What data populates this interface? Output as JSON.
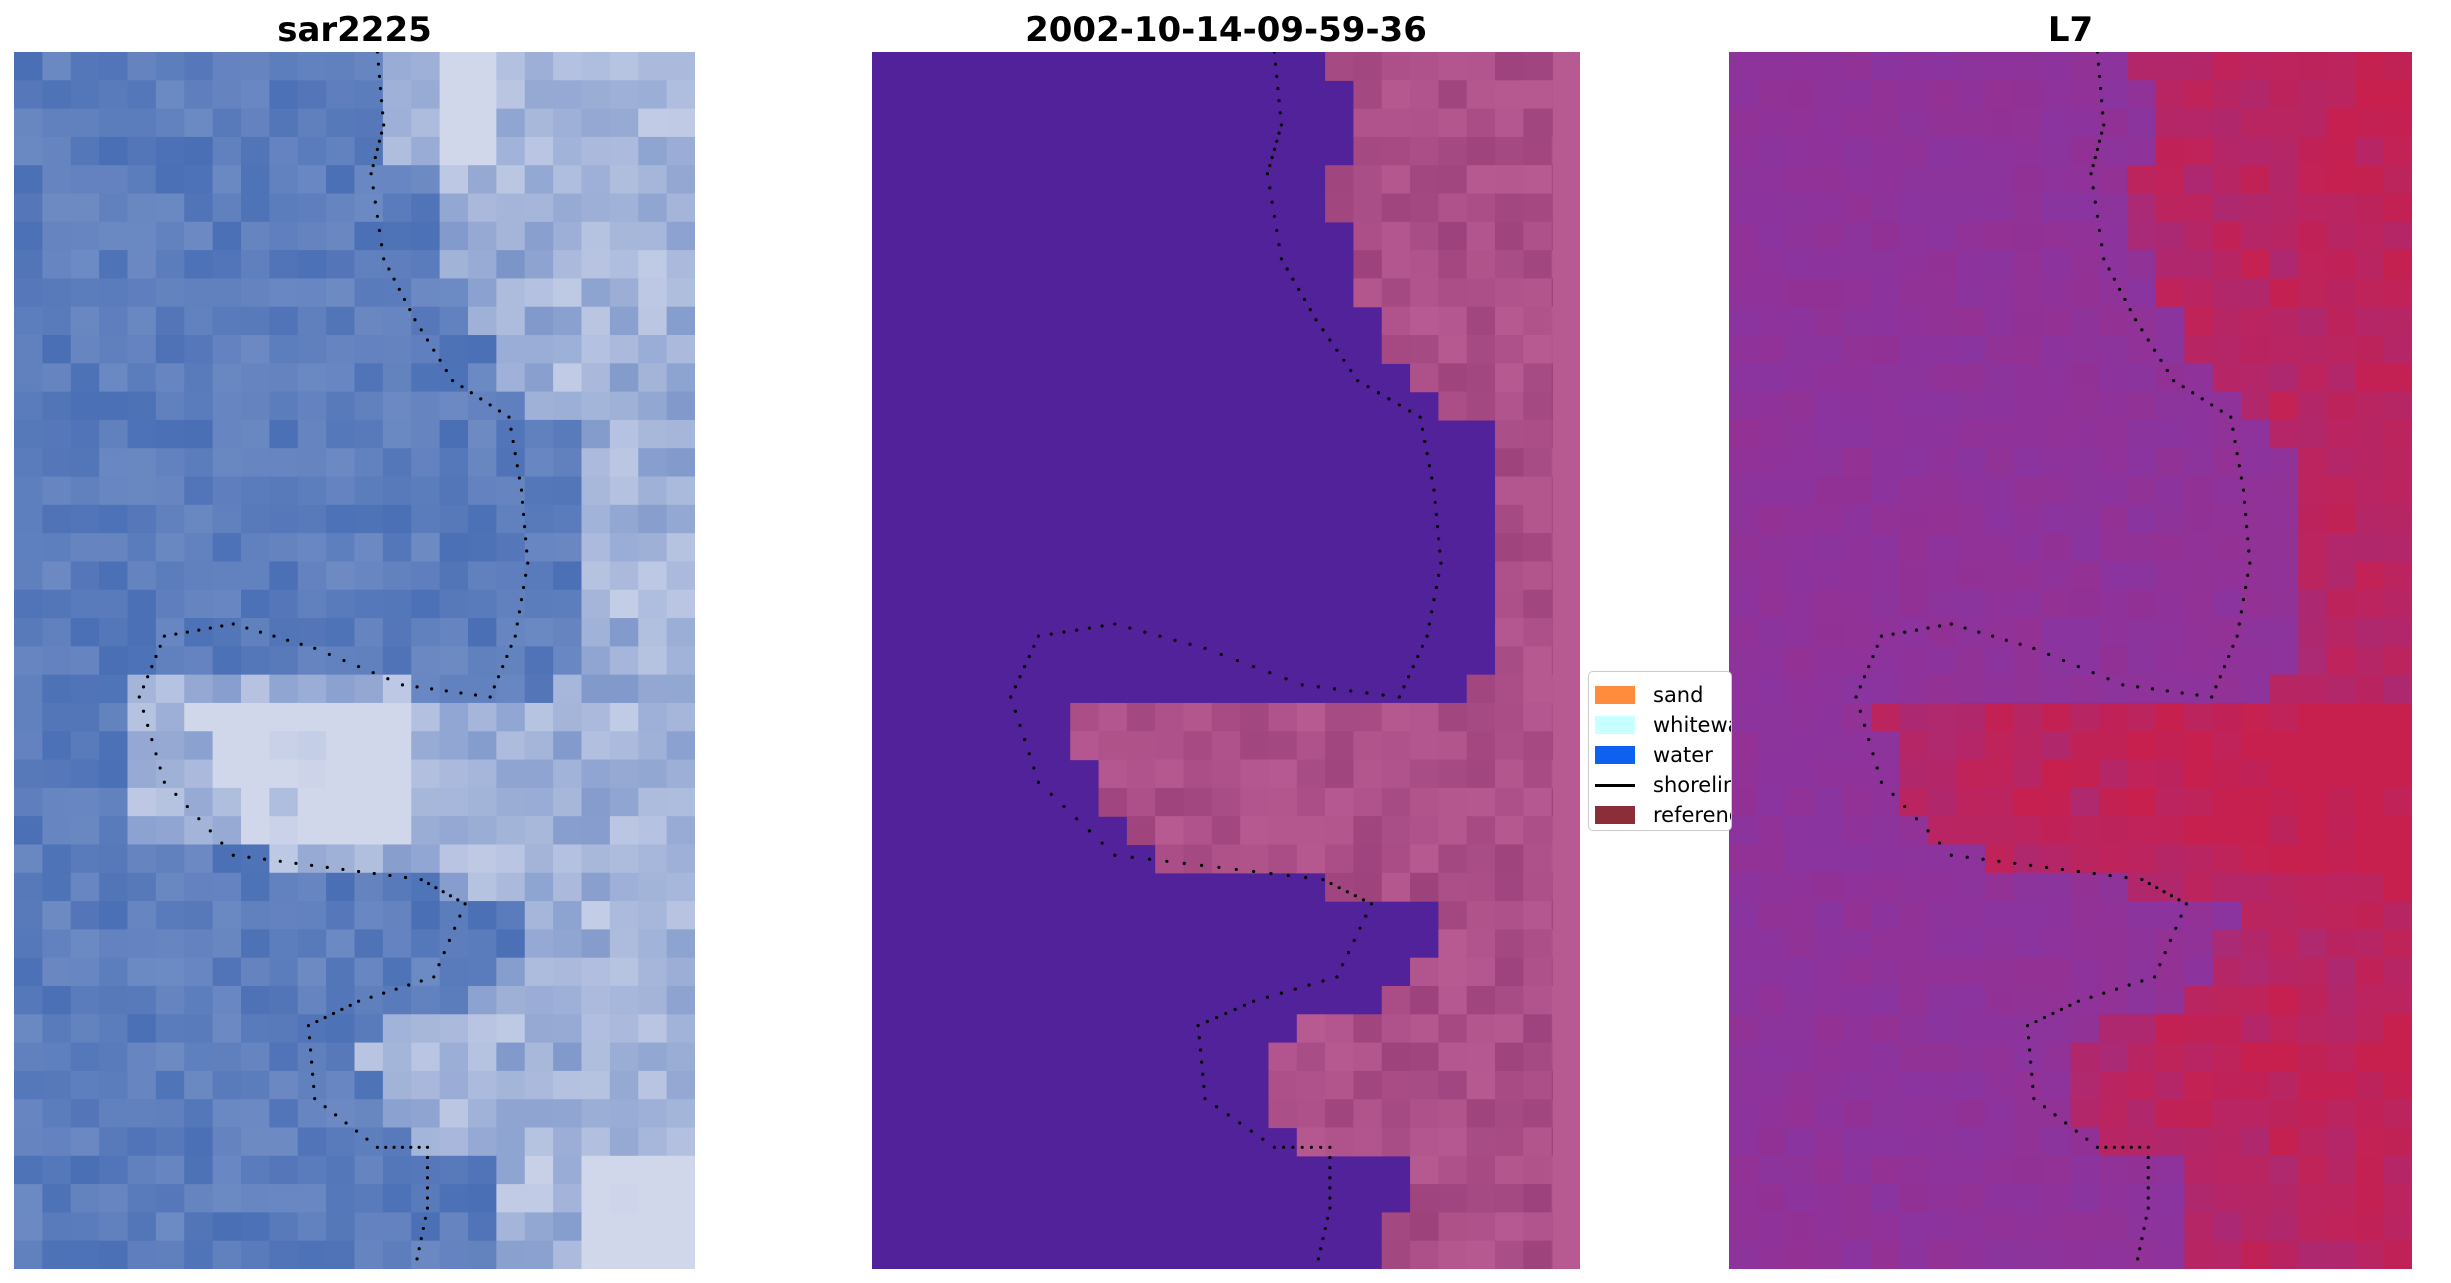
{
  "panels": [
    {
      "title": "sar2225",
      "base_color": "#4a6fb5"
    },
    {
      "title": "2002-10-14-09-59-36",
      "base_color": "#52229a",
      "land_color": "#b85a92"
    },
    {
      "title": "L7",
      "base_color": "#8a34a0",
      "land_color": "#c7204e"
    }
  ],
  "legend": {
    "items": [
      {
        "label": "sand",
        "color": "#ff8c3c"
      },
      {
        "label": "whitewater",
        "color": "#c8ffff"
      },
      {
        "label": "water",
        "color": "#1060f0"
      },
      {
        "label": "shoreline",
        "color": "#000000"
      },
      {
        "label": "reference",
        "color": "#8b2e3a"
      }
    ]
  }
}
